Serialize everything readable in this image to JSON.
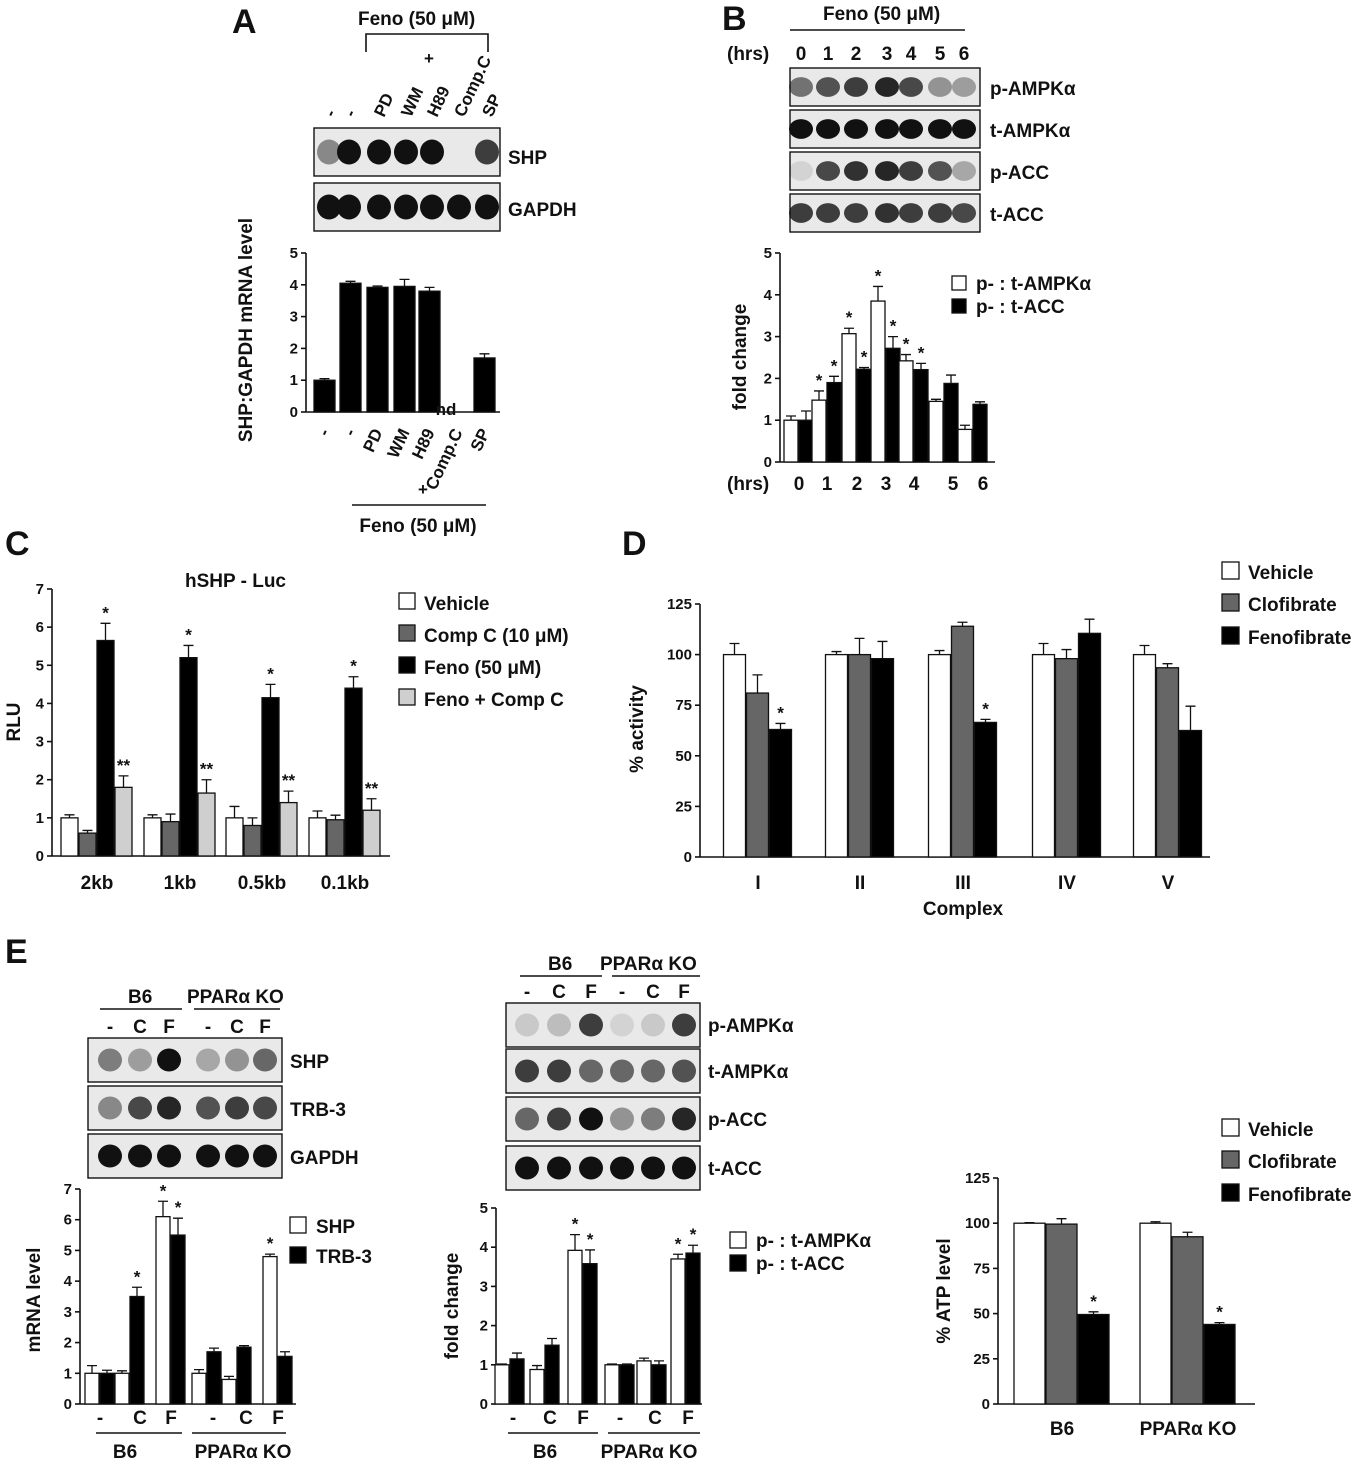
{
  "colors": {
    "vehicle": "#ffffff",
    "clofibrate": "#666666",
    "fenofibrate": "#000000",
    "compc": "#666666",
    "feno_compc": "#cfcfcf",
    "outline": "#111111"
  },
  "panels": {
    "A": {
      "letter": "A",
      "treatment_top": "Feno (50 μM)",
      "plus": "+",
      "lane_labels": [
        "-",
        "-",
        "PD",
        "WM",
        "H89",
        "Comp.C",
        "SP"
      ],
      "blots": [
        "SHP",
        "GAPDH"
      ],
      "band_intensity": {
        "SHP": [
          0.45,
          1,
          1,
          1,
          1,
          0,
          0.8
        ],
        "GAPDH": [
          1,
          1,
          1,
          1,
          1,
          1,
          1
        ]
      },
      "treatment_bottom": "Feno (50 μM)",
      "nd": "nd"
    },
    "B": {
      "letter": "B",
      "treatment_top": "Feno (50 μM)",
      "hrs_label": "(hrs)",
      "lane_labels": [
        "0",
        "1",
        "2",
        "3",
        "4",
        "5",
        "6"
      ],
      "blots": [
        "p-AMPKα",
        "t-AMPKα",
        "p-ACC",
        "t-ACC"
      ],
      "band_intensity": {
        "p-AMPKα": [
          0.55,
          0.7,
          0.8,
          0.9,
          0.75,
          0.4,
          0.35
        ],
        "t-AMPKα": [
          1,
          1,
          1,
          1,
          1,
          1,
          1
        ],
        "p-ACC": [
          0.1,
          0.75,
          0.85,
          0.9,
          0.8,
          0.7,
          0.3
        ],
        "t-ACC": [
          0.8,
          0.8,
          0.8,
          0.85,
          0.8,
          0.8,
          0.75
        ]
      }
    },
    "C": {
      "letter": "C"
    },
    "D": {
      "letter": "D"
    },
    "E": {
      "letter": "E",
      "groups": [
        "B6",
        "PPARα KO"
      ],
      "lane_labels": [
        "-",
        "C",
        "F",
        "-",
        "C",
        "F"
      ],
      "blots_left": [
        "SHP",
        "TRB-3",
        "GAPDH"
      ],
      "band_intensity_left": {
        "SHP": [
          0.5,
          0.35,
          1,
          0.3,
          0.4,
          0.6
        ],
        "TRB-3": [
          0.45,
          0.75,
          0.9,
          0.7,
          0.8,
          0.75
        ],
        "GAPDH": [
          1,
          1,
          1,
          1,
          1,
          1
        ]
      },
      "blots_mid": [
        "p-AMPKα",
        "t-AMPKα",
        "p-ACC",
        "t-ACC"
      ],
      "band_intensity_mid": {
        "p-AMPKα": [
          0.15,
          0.2,
          0.8,
          0.1,
          0.15,
          0.8
        ],
        "t-AMPKα": [
          0.8,
          0.8,
          0.6,
          0.6,
          0.6,
          0.7
        ],
        "p-ACC": [
          0.6,
          0.8,
          1,
          0.4,
          0.5,
          0.9
        ],
        "t-ACC": [
          1,
          1,
          1,
          1,
          1,
          1
        ]
      }
    }
  },
  "chart_data": [
    {
      "id": "A",
      "type": "bar",
      "ylabel": "SHP:GAPDH mRNA level",
      "ylim": [
        0,
        5
      ],
      "yticks": [
        0,
        1,
        2,
        3,
        4,
        5
      ],
      "categories": [
        "-",
        "-",
        "PD",
        "WM",
        "H89",
        "Comp.C",
        "SP"
      ],
      "xlabel": "Feno (50 μM)",
      "xlabel_plus": "+",
      "series": [
        {
          "values": [
            1.0,
            4.05,
            3.92,
            3.95,
            3.8,
            0,
            1.7
          ],
          "errors": [
            0.05,
            0.06,
            0.04,
            0.22,
            0.12,
            0,
            0.13
          ]
        }
      ],
      "annotations": [
        "",
        "*",
        "",
        "",
        "",
        "& nd",
        "&"
      ]
    },
    {
      "id": "B",
      "type": "bar",
      "ylabel": "fold change",
      "xlabel": "(hrs)",
      "ylim": [
        0,
        5
      ],
      "yticks": [
        0,
        1,
        2,
        3,
        4,
        5
      ],
      "categories": [
        "0",
        "1",
        "2",
        "3",
        "4",
        "5",
        "6"
      ],
      "series": [
        {
          "name": "p- : t-AMPKα",
          "values": [
            1.0,
            1.48,
            3.07,
            3.85,
            2.42,
            1.45,
            0.78
          ],
          "errors": [
            0.1,
            0.22,
            0.13,
            0.35,
            0.15,
            0.05,
            0.1
          ],
          "annotations": [
            "",
            "*",
            "*",
            "*",
            "*",
            "",
            ""
          ]
        },
        {
          "name": "p- : t-ACC",
          "values": [
            1.0,
            1.9,
            2.22,
            2.72,
            2.21,
            1.88,
            1.38
          ],
          "errors": [
            0.22,
            0.15,
            0.04,
            0.28,
            0.15,
            0.2,
            0.06
          ],
          "annotations": [
            "",
            "*",
            "*",
            "*",
            "*",
            "",
            ""
          ]
        }
      ],
      "legend": "top-right"
    },
    {
      "id": "C",
      "type": "bar",
      "title": "hSHP - Luc",
      "ylabel": "RLU",
      "ylim": [
        0,
        7
      ],
      "yticks": [
        0,
        1,
        2,
        3,
        4,
        5,
        6,
        7
      ],
      "categories": [
        "2kb",
        "1kb",
        "0.5kb",
        "0.1kb"
      ],
      "series": [
        {
          "name": "Vehicle",
          "values": [
            1.0,
            1.0,
            1.0,
            1.0
          ],
          "errors": [
            0.08,
            0.08,
            0.3,
            0.18
          ],
          "annotations": [
            "",
            "",
            "",
            ""
          ]
        },
        {
          "name": "Comp C (10 μM)",
          "values": [
            0.6,
            0.9,
            0.8,
            0.95
          ],
          "errors": [
            0.07,
            0.2,
            0.2,
            0.12
          ],
          "annotations": [
            "",
            "",
            "",
            ""
          ]
        },
        {
          "name": "Feno",
          "values": [
            5.65,
            5.2,
            4.15,
            4.4
          ],
          "errors": [
            0.45,
            0.32,
            0.35,
            0.3
          ],
          "annotations": [
            "*",
            "*",
            "*",
            "*"
          ]
        },
        {
          "name": "Feno + Comp C",
          "values": [
            1.8,
            1.65,
            1.4,
            1.2
          ],
          "errors": [
            0.3,
            0.35,
            0.3,
            0.3
          ],
          "annotations": [
            "**",
            "**",
            "**",
            "**"
          ]
        }
      ],
      "legend_labels": [
        "Vehicle",
        "Comp C (10 μM)",
        "Feno          (50 μM)",
        "Feno + Comp C"
      ],
      "legend": "right"
    },
    {
      "id": "D",
      "type": "bar",
      "ylabel": "% activity",
      "xlabel": "Complex",
      "ylim": [
        0,
        125
      ],
      "yticks": [
        0,
        25,
        50,
        75,
        100,
        125
      ],
      "categories": [
        "I",
        "II",
        "III",
        "IV",
        "V"
      ],
      "series": [
        {
          "name": "Vehicle",
          "values": [
            100,
            100,
            100,
            100,
            100
          ],
          "errors": [
            5.5,
            1.5,
            2,
            5.5,
            4.5
          ],
          "annotations": [
            "",
            "",
            "",
            "",
            ""
          ]
        },
        {
          "name": "Clofibrate",
          "values": [
            81,
            100,
            114,
            98,
            93.5
          ],
          "errors": [
            9,
            8,
            2,
            4.5,
            2
          ],
          "annotations": [
            "",
            "",
            "",
            "",
            ""
          ]
        },
        {
          "name": "Fenofibrate",
          "values": [
            63,
            98,
            66.5,
            110.5,
            62.5
          ],
          "errors": [
            3,
            8.5,
            1.5,
            7,
            12
          ],
          "annotations": [
            "*",
            "",
            "*",
            "",
            ""
          ]
        }
      ],
      "legend": "top-right"
    },
    {
      "id": "E-left",
      "type": "bar",
      "ylabel": "mRNA level",
      "ylim": [
        0,
        7
      ],
      "yticks": [
        0,
        1,
        2,
        3,
        4,
        5,
        6,
        7
      ],
      "groups": [
        "B6",
        "PPARα KO"
      ],
      "categories": [
        "-",
        "C",
        "F",
        "-",
        "C",
        "F"
      ],
      "series": [
        {
          "name": "SHP",
          "values": [
            1.0,
            1.0,
            6.1,
            1.0,
            0.8,
            4.8
          ],
          "errors": [
            0.25,
            0.08,
            0.5,
            0.12,
            0.1,
            0.08
          ],
          "annotations": [
            "",
            "",
            "*",
            "",
            "",
            "*"
          ]
        },
        {
          "name": "TRB-3",
          "values": [
            1.0,
            3.5,
            5.5,
            1.7,
            1.85,
            1.55
          ],
          "errors": [
            0.1,
            0.3,
            0.55,
            0.12,
            0.05,
            0.15
          ],
          "annotations": [
            "",
            "*",
            "*",
            "",
            "",
            ""
          ]
        }
      ],
      "legend": "top-right"
    },
    {
      "id": "E-mid",
      "type": "bar",
      "ylabel": "fold change",
      "ylim": [
        0,
        5
      ],
      "yticks": [
        0,
        1,
        2,
        3,
        4,
        5
      ],
      "groups": [
        "B6",
        "PPARα KO"
      ],
      "categories": [
        "-",
        "C",
        "F",
        "-",
        "C",
        "F"
      ],
      "series": [
        {
          "name": "p- : t-AMPKα",
          "values": [
            1.0,
            0.88,
            3.92,
            1.0,
            1.1,
            3.7
          ],
          "errors": [
            0.02,
            0.1,
            0.4,
            0.02,
            0.07,
            0.12
          ],
          "annotations": [
            "",
            "",
            "*",
            "",
            "",
            "*"
          ]
        },
        {
          "name": "p- : t-ACC",
          "values": [
            1.15,
            1.5,
            3.58,
            1.0,
            1.0,
            3.85
          ],
          "errors": [
            0.15,
            0.17,
            0.35,
            0.02,
            0.1,
            0.2
          ],
          "annotations": [
            "",
            "",
            "*",
            "",
            "",
            "*"
          ]
        }
      ],
      "legend": "top-right"
    },
    {
      "id": "E-right",
      "type": "bar",
      "ylabel": "%  ATP level",
      "ylim": [
        0,
        125
      ],
      "yticks": [
        0,
        25,
        50,
        75,
        100,
        125
      ],
      "categories": [
        "B6",
        "PPARα KO"
      ],
      "series": [
        {
          "name": "Vehicle",
          "values": [
            100,
            100
          ],
          "errors": [
            0.3,
            0.8
          ],
          "annotations": [
            "",
            ""
          ]
        },
        {
          "name": "Clofibrate",
          "values": [
            99.5,
            92.5
          ],
          "errors": [
            3,
            2.5
          ],
          "annotations": [
            "",
            ""
          ]
        },
        {
          "name": "Fenofibrate",
          "values": [
            49.5,
            44
          ],
          "errors": [
            1.5,
            1
          ],
          "annotations": [
            "*",
            "*"
          ]
        }
      ],
      "legend": "top-right"
    }
  ]
}
